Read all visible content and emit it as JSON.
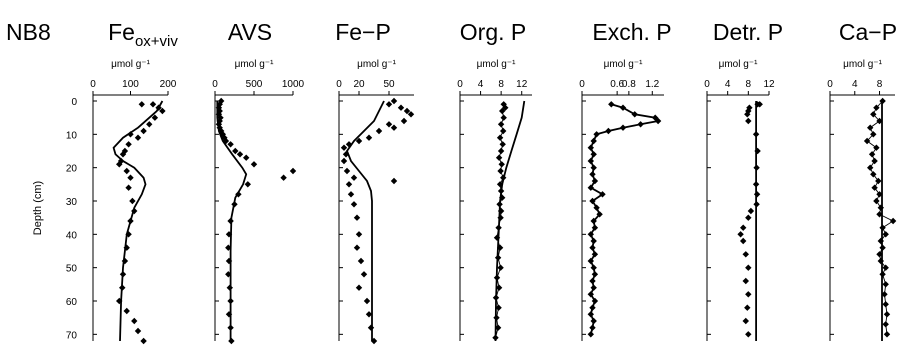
{
  "figure": {
    "core_label": "NB8",
    "y_axis_label": "Depth (cm)",
    "depth_ticks": [
      0,
      10,
      20,
      30,
      40,
      50,
      60,
      70
    ]
  },
  "chart_data": [
    {
      "type": "scatter",
      "title": "Fe",
      "title_subscript": "ox+viv",
      "xlabel": "μmol g⁻¹",
      "ylabel": "Depth (cm)",
      "xlim": [
        0,
        200
      ],
      "ylim": [
        0,
        72
      ],
      "x_ticks": [
        0,
        100,
        200
      ],
      "x_tick_labels": [
        "0",
        "100",
        "200"
      ],
      "connected": false,
      "points": [
        [
          130,
          1
        ],
        [
          160,
          1
        ],
        [
          175,
          2
        ],
        [
          185,
          3
        ],
        [
          165,
          5
        ],
        [
          150,
          7
        ],
        [
          135,
          9
        ],
        [
          120,
          11
        ],
        [
          100,
          10
        ],
        [
          95,
          13
        ],
        [
          85,
          15
        ],
        [
          80,
          16
        ],
        [
          75,
          18
        ],
        [
          70,
          19
        ],
        [
          90,
          21
        ],
        [
          100,
          23
        ],
        [
          95,
          26
        ],
        [
          105,
          30
        ],
        [
          110,
          33
        ],
        [
          100,
          36
        ],
        [
          95,
          40
        ],
        [
          90,
          44
        ],
        [
          85,
          48
        ],
        [
          80,
          52
        ],
        [
          78,
          56
        ],
        [
          70,
          60
        ],
        [
          90,
          63
        ],
        [
          110,
          66
        ],
        [
          120,
          69
        ],
        [
          135,
          72
        ]
      ],
      "model": [
        [
          185,
          0
        ],
        [
          170,
          3
        ],
        [
          150,
          5
        ],
        [
          120,
          8
        ],
        [
          80,
          11
        ],
        [
          55,
          14
        ],
        [
          60,
          16
        ],
        [
          80,
          18
        ],
        [
          110,
          20
        ],
        [
          135,
          23
        ],
        [
          140,
          25
        ],
        [
          130,
          28
        ],
        [
          110,
          32
        ],
        [
          90,
          40
        ],
        [
          80,
          50
        ],
        [
          75,
          60
        ],
        [
          72,
          72
        ]
      ]
    },
    {
      "type": "scatter",
      "title": "AVS",
      "xlabel": "μmol g⁻¹",
      "ylabel": "Depth (cm)",
      "xlim": [
        0,
        1000
      ],
      "ylim": [
        0,
        72
      ],
      "x_ticks": [
        0,
        500,
        1000
      ],
      "x_tick_labels": [
        "0",
        "500",
        "1000"
      ],
      "connected": false,
      "points": [
        [
          80,
          0
        ],
        [
          60,
          1
        ],
        [
          50,
          2
        ],
        [
          60,
          3
        ],
        [
          50,
          4
        ],
        [
          70,
          5
        ],
        [
          60,
          6
        ],
        [
          50,
          7
        ],
        [
          60,
          8
        ],
        [
          80,
          9
        ],
        [
          100,
          10
        ],
        [
          120,
          11
        ],
        [
          140,
          12
        ],
        [
          200,
          13
        ],
        [
          260,
          15
        ],
        [
          320,
          16
        ],
        [
          400,
          17
        ],
        [
          500,
          19
        ],
        [
          1000,
          21
        ],
        [
          880,
          23
        ],
        [
          420,
          25
        ],
        [
          300,
          28
        ],
        [
          250,
          31
        ],
        [
          200,
          36
        ],
        [
          180,
          40
        ],
        [
          170,
          44
        ],
        [
          180,
          48
        ],
        [
          170,
          52
        ],
        [
          190,
          56
        ],
        [
          200,
          60
        ],
        [
          180,
          64
        ],
        [
          200,
          68
        ],
        [
          210,
          72
        ]
      ],
      "model": [
        [
          30,
          0
        ],
        [
          30,
          5
        ],
        [
          50,
          9
        ],
        [
          100,
          12
        ],
        [
          220,
          16
        ],
        [
          350,
          20
        ],
        [
          400,
          22
        ],
        [
          360,
          25
        ],
        [
          260,
          29
        ],
        [
          210,
          35
        ],
        [
          200,
          45
        ],
        [
          200,
          72
        ]
      ]
    },
    {
      "type": "scatter",
      "title": "Fe−P",
      "xlabel": "μmol g⁻¹",
      "ylabel": "Depth (cm)",
      "xlim": [
        0,
        75
      ],
      "ylim": [
        0,
        72
      ],
      "x_ticks": [
        0,
        20,
        50
      ],
      "x_tick_labels": [
        "0",
        "20",
        "50"
      ],
      "connected": false,
      "points": [
        [
          55,
          0
        ],
        [
          50,
          1
        ],
        [
          62,
          2
        ],
        [
          68,
          3
        ],
        [
          72,
          4
        ],
        [
          65,
          6
        ],
        [
          50,
          7
        ],
        [
          55,
          8
        ],
        [
          40,
          9
        ],
        [
          30,
          11
        ],
        [
          20,
          12
        ],
        [
          10,
          13
        ],
        [
          5,
          14
        ],
        [
          7,
          16
        ],
        [
          5,
          18
        ],
        [
          8,
          21
        ],
        [
          15,
          23
        ],
        [
          10,
          25
        ],
        [
          55,
          24
        ],
        [
          12,
          28
        ],
        [
          15,
          31
        ],
        [
          18,
          35
        ],
        [
          20,
          40
        ],
        [
          18,
          44
        ],
        [
          22,
          48
        ],
        [
          25,
          52
        ],
        [
          20,
          56
        ],
        [
          28,
          60
        ],
        [
          30,
          64
        ],
        [
          32,
          68
        ],
        [
          35,
          72
        ]
      ],
      "model": [
        [
          45,
          0
        ],
        [
          40,
          3
        ],
        [
          35,
          6
        ],
        [
          25,
          9
        ],
        [
          15,
          12
        ],
        [
          8,
          15
        ],
        [
          12,
          18
        ],
        [
          20,
          21
        ],
        [
          28,
          24
        ],
        [
          32,
          27
        ],
        [
          33,
          30
        ],
        [
          33,
          40
        ],
        [
          33,
          50
        ],
        [
          33,
          60
        ],
        [
          33,
          72
        ]
      ]
    },
    {
      "type": "scatter",
      "title": "Org. P",
      "xlabel": "μmol g⁻¹",
      "ylabel": "Depth (cm)",
      "xlim": [
        0,
        14
      ],
      "ylim": [
        0,
        72
      ],
      "x_ticks": [
        0,
        4,
        8,
        12
      ],
      "x_tick_labels": [
        "0",
        "4",
        "8",
        "12"
      ],
      "connected": true,
      "points": [
        [
          8.5,
          1
        ],
        [
          8.8,
          2
        ],
        [
          8.2,
          3
        ],
        [
          8.5,
          5
        ],
        [
          8.0,
          7
        ],
        [
          8.4,
          9
        ],
        [
          7.8,
          11
        ],
        [
          8.3,
          13
        ],
        [
          8.0,
          15
        ],
        [
          7.6,
          17
        ],
        [
          8.1,
          19
        ],
        [
          7.9,
          21
        ],
        [
          8.4,
          23
        ],
        [
          7.8,
          25
        ],
        [
          8.0,
          27
        ],
        [
          8.2,
          29
        ],
        [
          7.7,
          31
        ],
        [
          8.0,
          33
        ],
        [
          7.9,
          35
        ],
        [
          7.5,
          38
        ],
        [
          7.2,
          41
        ],
        [
          7.8,
          44
        ],
        [
          7.4,
          47
        ],
        [
          7.9,
          50
        ],
        [
          7.2,
          53
        ],
        [
          7.6,
          56
        ],
        [
          7.0,
          59
        ],
        [
          7.5,
          62
        ],
        [
          7.1,
          65
        ],
        [
          7.4,
          68
        ],
        [
          6.9,
          71
        ]
      ],
      "model": [
        [
          12.5,
          0
        ],
        [
          12.0,
          5
        ],
        [
          11.0,
          10
        ],
        [
          10.0,
          15
        ],
        [
          9.0,
          20
        ],
        [
          8.2,
          25
        ],
        [
          7.8,
          30
        ],
        [
          7.5,
          40
        ],
        [
          7.2,
          50
        ],
        [
          7.0,
          60
        ],
        [
          6.9,
          72
        ]
      ]
    },
    {
      "type": "scatter",
      "title": "Exch. P",
      "xlabel": "μmol g⁻¹",
      "ylabel": "Depth (cm)",
      "xlim": [
        0,
        1.4
      ],
      "ylim": [
        0,
        72
      ],
      "x_ticks": [
        0,
        0.6,
        0.8,
        1.2
      ],
      "x_tick_labels": [
        "0",
        "0.6",
        "0.8",
        "1.2"
      ],
      "connected": true,
      "points": [
        [
          0.5,
          1
        ],
        [
          0.7,
          2
        ],
        [
          0.9,
          4
        ],
        [
          1.25,
          5
        ],
        [
          1.3,
          6
        ],
        [
          1.0,
          7
        ],
        [
          0.7,
          8
        ],
        [
          0.45,
          9
        ],
        [
          0.25,
          10
        ],
        [
          0.2,
          12
        ],
        [
          0.15,
          14
        ],
        [
          0.2,
          16
        ],
        [
          0.15,
          18
        ],
        [
          0.2,
          20
        ],
        [
          0.18,
          22
        ],
        [
          0.22,
          24
        ],
        [
          0.15,
          26
        ],
        [
          0.35,
          28
        ],
        [
          0.18,
          30
        ],
        [
          0.25,
          32
        ],
        [
          0.3,
          34
        ],
        [
          0.2,
          36
        ],
        [
          0.22,
          38
        ],
        [
          0.15,
          40
        ],
        [
          0.2,
          42
        ],
        [
          0.18,
          44
        ],
        [
          0.22,
          46
        ],
        [
          0.15,
          48
        ],
        [
          0.2,
          50
        ],
        [
          0.22,
          52
        ],
        [
          0.18,
          54
        ],
        [
          0.2,
          56
        ],
        [
          0.15,
          58
        ],
        [
          0.22,
          60
        ],
        [
          0.18,
          62
        ],
        [
          0.15,
          64
        ],
        [
          0.2,
          66
        ],
        [
          0.18,
          68
        ],
        [
          0.15,
          70
        ]
      ],
      "model": [
        [
          0.5,
          1
        ],
        [
          0.7,
          2
        ],
        [
          0.9,
          4
        ],
        [
          1.25,
          5
        ],
        [
          1.3,
          6
        ],
        [
          1.0,
          7
        ],
        [
          0.7,
          8
        ],
        [
          0.45,
          9
        ],
        [
          0.25,
          10
        ],
        [
          0.2,
          12
        ],
        [
          0.15,
          14
        ],
        [
          0.2,
          16
        ],
        [
          0.15,
          18
        ],
        [
          0.2,
          20
        ],
        [
          0.18,
          22
        ],
        [
          0.22,
          24
        ],
        [
          0.15,
          26
        ],
        [
          0.35,
          28
        ],
        [
          0.18,
          30
        ],
        [
          0.25,
          32
        ],
        [
          0.3,
          34
        ],
        [
          0.2,
          36
        ],
        [
          0.22,
          38
        ],
        [
          0.15,
          40
        ],
        [
          0.2,
          42
        ],
        [
          0.18,
          44
        ],
        [
          0.22,
          46
        ],
        [
          0.15,
          48
        ],
        [
          0.2,
          50
        ],
        [
          0.22,
          52
        ],
        [
          0.18,
          54
        ],
        [
          0.2,
          56
        ],
        [
          0.15,
          58
        ],
        [
          0.22,
          60
        ],
        [
          0.18,
          62
        ],
        [
          0.15,
          64
        ],
        [
          0.2,
          66
        ],
        [
          0.18,
          68
        ],
        [
          0.15,
          70
        ]
      ]
    },
    {
      "type": "scatter",
      "title": "Detr. P",
      "xlabel": "μmol g⁻¹",
      "ylabel": "Depth (cm)",
      "xlim": [
        0,
        12
      ],
      "ylim": [
        0,
        72
      ],
      "x_ticks": [
        0,
        4,
        8,
        12
      ],
      "x_tick_labels": [
        "0",
        "4",
        "8",
        "12"
      ],
      "connected": false,
      "points": [
        [
          9.8,
          1
        ],
        [
          10.2,
          1
        ],
        [
          8.2,
          2
        ],
        [
          8.0,
          3
        ],
        [
          7.8,
          4
        ],
        [
          8.0,
          6
        ],
        [
          9.5,
          10
        ],
        [
          9.8,
          15
        ],
        [
          9.6,
          20
        ],
        [
          9.5,
          25
        ],
        [
          9.7,
          28
        ],
        [
          9.6,
          31
        ],
        [
          8.5,
          33
        ],
        [
          8.0,
          35
        ],
        [
          7.0,
          38
        ],
        [
          6.5,
          40
        ],
        [
          7.0,
          42
        ],
        [
          7.5,
          46
        ],
        [
          8.0,
          50
        ],
        [
          7.5,
          54
        ],
        [
          8.0,
          58
        ],
        [
          7.8,
          62
        ],
        [
          7.5,
          66
        ],
        [
          8.0,
          70
        ]
      ],
      "model": [
        [
          9.5,
          0
        ],
        [
          9.5,
          72
        ]
      ]
    },
    {
      "type": "scatter",
      "title": "Ca−P",
      "xlabel": "μmol g⁻¹",
      "ylabel": "Depth (cm)",
      "xlim": [
        0,
        10.5
      ],
      "ylim": [
        0,
        72
      ],
      "x_ticks": [
        0,
        4,
        8
      ],
      "x_tick_labels": [
        "0",
        "4",
        "8"
      ],
      "connected": true,
      "points": [
        [
          8.5,
          0
        ],
        [
          7.5,
          2
        ],
        [
          7.0,
          4
        ],
        [
          8.0,
          6
        ],
        [
          6.5,
          8
        ],
        [
          7.0,
          10
        ],
        [
          6.0,
          12
        ],
        [
          7.5,
          14
        ],
        [
          6.8,
          16
        ],
        [
          7.2,
          18
        ],
        [
          6.5,
          20
        ],
        [
          7.0,
          22
        ],
        [
          7.8,
          24
        ],
        [
          7.2,
          26
        ],
        [
          8.0,
          28
        ],
        [
          7.5,
          30
        ],
        [
          8.2,
          32
        ],
        [
          8.0,
          34
        ],
        [
          10.2,
          36
        ],
        [
          8.5,
          38
        ],
        [
          9.0,
          40
        ],
        [
          8.2,
          42
        ],
        [
          8.5,
          44
        ],
        [
          8.0,
          46
        ],
        [
          8.2,
          48
        ],
        [
          9.0,
          50
        ],
        [
          8.5,
          52
        ],
        [
          9.0,
          55
        ],
        [
          8.8,
          58
        ],
        [
          9.0,
          61
        ],
        [
          9.2,
          64
        ],
        [
          9.0,
          67
        ],
        [
          9.2,
          70
        ]
      ],
      "model": [
        [
          8.4,
          0
        ],
        [
          8.4,
          72
        ]
      ]
    }
  ]
}
